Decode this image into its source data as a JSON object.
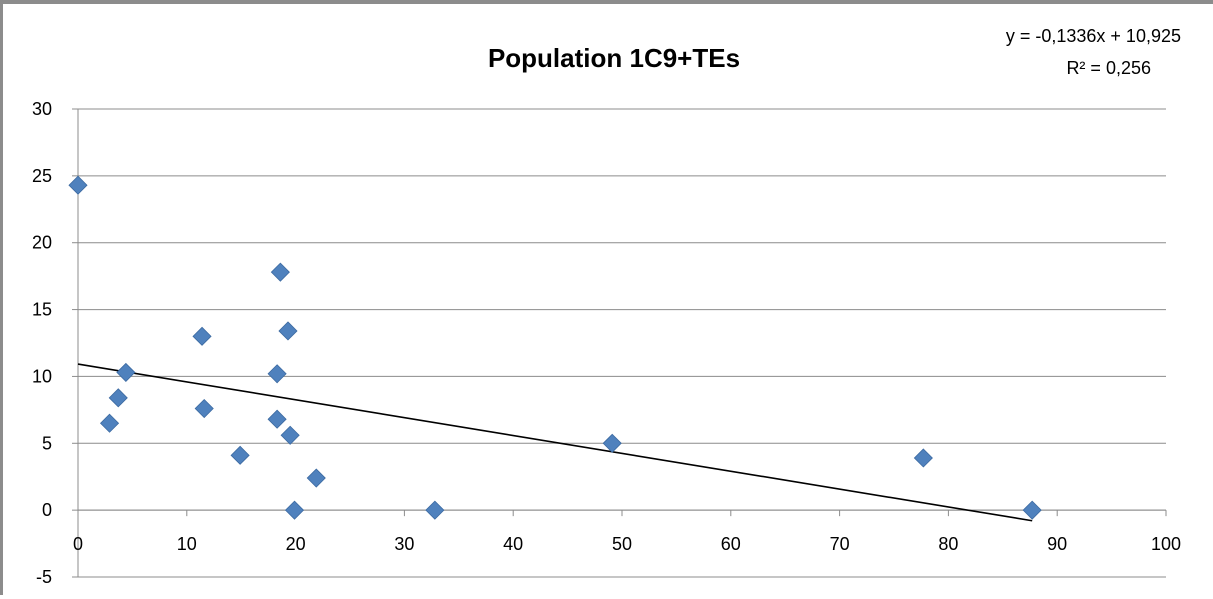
{
  "chart_data": {
    "type": "scatter",
    "title": "Population 1C9+TEs",
    "xlabel": "",
    "ylabel": "",
    "xlim": [
      0,
      100
    ],
    "ylim": [
      -5,
      30
    ],
    "x_ticks": [
      0,
      10,
      20,
      30,
      40,
      50,
      60,
      70,
      80,
      90,
      100
    ],
    "y_ticks": [
      -5,
      0,
      5,
      10,
      15,
      20,
      25,
      30
    ],
    "grid": "horizontal",
    "legend": "none",
    "series": [
      {
        "color": "#4f81bd",
        "marker": "diamond",
        "points": [
          {
            "x": 0,
            "y": 24.3
          },
          {
            "x": 2.9,
            "y": 6.5
          },
          {
            "x": 3.7,
            "y": 8.4
          },
          {
            "x": 4.4,
            "y": 10.3
          },
          {
            "x": 11.4,
            "y": 13.0
          },
          {
            "x": 11.6,
            "y": 7.6
          },
          {
            "x": 14.9,
            "y": 4.1
          },
          {
            "x": 18.3,
            "y": 10.2
          },
          {
            "x": 18.3,
            "y": 6.8
          },
          {
            "x": 18.6,
            "y": 17.8
          },
          {
            "x": 19.3,
            "y": 13.4
          },
          {
            "x": 19.5,
            "y": 5.6
          },
          {
            "x": 19.9,
            "y": 0.0
          },
          {
            "x": 21.9,
            "y": 2.4
          },
          {
            "x": 32.8,
            "y": 0.0
          },
          {
            "x": 49.1,
            "y": 5.0
          },
          {
            "x": 77.7,
            "y": 3.9
          },
          {
            "x": 87.7,
            "y": 0.0
          }
        ]
      }
    ],
    "trendline": {
      "type": "linear",
      "slope": -0.1336,
      "intercept": 10.925,
      "x_range": [
        0,
        87.7
      ],
      "color": "#000000",
      "equation_text": "y = -0,1336x + 10,925",
      "r2_text": "R² = 0,256"
    }
  }
}
